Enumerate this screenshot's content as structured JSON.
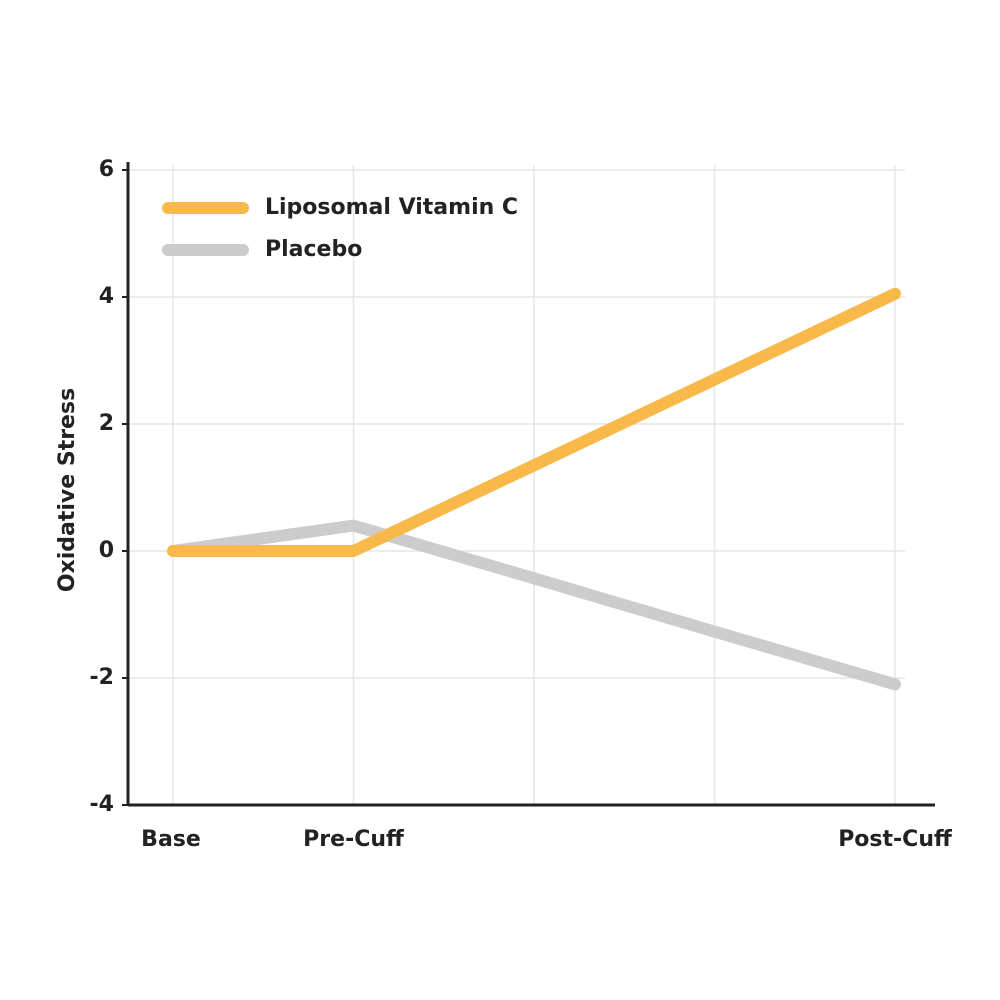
{
  "chart_data": {
    "type": "line",
    "y_label": "Oxidative Stress",
    "categories": [
      "Base",
      "Pre-Cuff",
      null,
      null,
      "Post-Cuff"
    ],
    "series": [
      {
        "name": "Liposomal Vitamin C",
        "color": "#f9b84a",
        "values": [
          0,
          0,
          1.35,
          2.7,
          4.05
        ]
      },
      {
        "name": "Placebo",
        "color": "#cccccc",
        "values": [
          0,
          0.4,
          -0.43,
          -1.27,
          -2.1
        ]
      }
    ],
    "ylim": [
      -4,
      6
    ],
    "yticks": [
      -4,
      -2,
      0,
      2,
      4,
      6
    ],
    "grid": true,
    "legend": "top-left"
  }
}
